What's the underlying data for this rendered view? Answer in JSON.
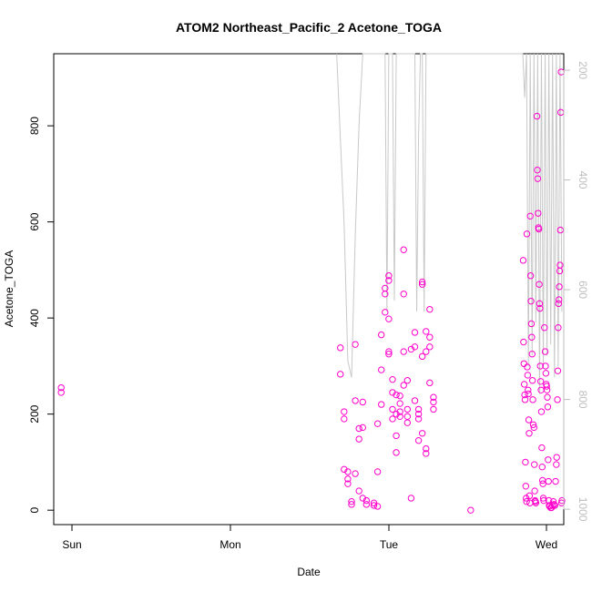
{
  "chart_data": {
    "type": "scatter",
    "title": "ATOM2 Northeast_Pacific_2 Acetone_TOGA",
    "xlabel": "Date",
    "ylabel": "Acetone_TOGA",
    "x_ticks": [
      "Sun",
      "Mon",
      "Tue",
      "Wed"
    ],
    "xlim": [
      -0.02,
      1.35
    ],
    "ylim": [
      -30,
      950
    ],
    "y_ticks": [
      0,
      200,
      400,
      600,
      800
    ],
    "y2_ticks": [
      200,
      400,
      600,
      800,
      1000
    ],
    "y2lim": [
      1028,
      170
    ],
    "grid": false,
    "colors": {
      "points": "#ff00cc",
      "line": "#c8c8c8",
      "axis": "#000000",
      "secondary_axis": "#bdbdbd"
    },
    "series": [
      {
        "values_note": "x in days since Sun tick",
        "points": [
          [
            0.0,
            245
          ],
          [
            0.0,
            255
          ],
          [
            0.75,
            338
          ],
          [
            0.75,
            283
          ],
          [
            0.76,
            205
          ],
          [
            0.76,
            190
          ],
          [
            0.76,
            85
          ],
          [
            0.77,
            80
          ],
          [
            0.77,
            65
          ],
          [
            0.77,
            55
          ],
          [
            0.78,
            12
          ],
          [
            0.78,
            18
          ],
          [
            0.79,
            345
          ],
          [
            0.79,
            228
          ],
          [
            0.79,
            76
          ],
          [
            0.8,
            40
          ],
          [
            0.8,
            148
          ],
          [
            0.8,
            170
          ],
          [
            0.81,
            225
          ],
          [
            0.81,
            172
          ],
          [
            0.81,
            25
          ],
          [
            0.82,
            20
          ],
          [
            0.82,
            12
          ],
          [
            0.84,
            15
          ],
          [
            0.84,
            10
          ],
          [
            0.85,
            8
          ],
          [
            0.85,
            80
          ],
          [
            0.85,
            180
          ],
          [
            0.86,
            220
          ],
          [
            0.86,
            292
          ],
          [
            0.86,
            365
          ],
          [
            0.87,
            412
          ],
          [
            0.87,
            450
          ],
          [
            0.87,
            462
          ],
          [
            0.88,
            488
          ],
          [
            0.88,
            478
          ],
          [
            0.88,
            398
          ],
          [
            0.88,
            330
          ],
          [
            0.88,
            325
          ],
          [
            0.89,
            272
          ],
          [
            0.89,
            245
          ],
          [
            0.89,
            210
          ],
          [
            0.89,
            190
          ],
          [
            0.9,
            155
          ],
          [
            0.9,
            120
          ],
          [
            0.9,
            200
          ],
          [
            0.9,
            240
          ],
          [
            0.91,
            222
          ],
          [
            0.91,
            238
          ],
          [
            0.91,
            205
          ],
          [
            0.91,
            195
          ],
          [
            0.92,
            542
          ],
          [
            0.92,
            450
          ],
          [
            0.92,
            330
          ],
          [
            0.92,
            260
          ],
          [
            0.93,
            270
          ],
          [
            0.93,
            210
          ],
          [
            0.93,
            195
          ],
          [
            0.93,
            182
          ],
          [
            0.94,
            25
          ],
          [
            0.94,
            335
          ],
          [
            0.95,
            370
          ],
          [
            0.95,
            340
          ],
          [
            0.95,
            228
          ],
          [
            0.96,
            210
          ],
          [
            0.96,
            200
          ],
          [
            0.96,
            190
          ],
          [
            0.96,
            145
          ],
          [
            0.97,
            475
          ],
          [
            0.97,
            470
          ],
          [
            0.97,
            320
          ],
          [
            0.97,
            160
          ],
          [
            0.98,
            372
          ],
          [
            0.98,
            330
          ],
          [
            0.98,
            128
          ],
          [
            0.98,
            118
          ],
          [
            0.99,
            418
          ],
          [
            0.99,
            360
          ],
          [
            0.99,
            340
          ],
          [
            0.99,
            265
          ],
          [
            1.0,
            235
          ],
          [
            1.0,
            225
          ],
          [
            1.0,
            210
          ],
          [
            1.1,
            0
          ],
          [
            1.241,
            520
          ],
          [
            1.242,
            350
          ],
          [
            1.243,
            305
          ],
          [
            1.244,
            262
          ],
          [
            1.245,
            240
          ],
          [
            1.246,
            230
          ],
          [
            1.247,
            100
          ],
          [
            1.248,
            50
          ],
          [
            1.249,
            25
          ],
          [
            1.25,
            18
          ],
          [
            1.251,
            575
          ],
          [
            1.252,
            298
          ],
          [
            1.253,
            281
          ],
          [
            1.254,
            250
          ],
          [
            1.255,
            242
          ],
          [
            1.256,
            188
          ],
          [
            1.257,
            160
          ],
          [
            1.258,
            30
          ],
          [
            1.259,
            15
          ],
          [
            1.26,
            612
          ],
          [
            1.261,
            488
          ],
          [
            1.262,
            435
          ],
          [
            1.263,
            388
          ],
          [
            1.264,
            360
          ],
          [
            1.265,
            325
          ],
          [
            1.266,
            270
          ],
          [
            1.267,
            230
          ],
          [
            1.268,
            178
          ],
          [
            1.27,
            172
          ],
          [
            1.271,
            95
          ],
          [
            1.272,
            40
          ],
          [
            1.273,
            20
          ],
          [
            1.274,
            18
          ],
          [
            1.275,
            15
          ],
          [
            1.278,
            820
          ],
          [
            1.279,
            708
          ],
          [
            1.28,
            690
          ],
          [
            1.281,
            618
          ],
          [
            1.282,
            588
          ],
          [
            1.283,
            585
          ],
          [
            1.284,
            470
          ],
          [
            1.285,
            430
          ],
          [
            1.286,
            420
          ],
          [
            1.287,
            300
          ],
          [
            1.288,
            268
          ],
          [
            1.289,
            250
          ],
          [
            1.29,
            205
          ],
          [
            1.291,
            130
          ],
          [
            1.292,
            90
          ],
          [
            1.293,
            62
          ],
          [
            1.294,
            55
          ],
          [
            1.295,
            25
          ],
          [
            1.296,
            20
          ],
          [
            1.298,
            380
          ],
          [
            1.3,
            330
          ],
          [
            1.301,
            300
          ],
          [
            1.302,
            285
          ],
          [
            1.303,
            262
          ],
          [
            1.304,
            258
          ],
          [
            1.305,
            250
          ],
          [
            1.306,
            235
          ],
          [
            1.307,
            215
          ],
          [
            1.308,
            105
          ],
          [
            1.309,
            60
          ],
          [
            1.31,
            20
          ],
          [
            1.311,
            10
          ],
          [
            1.312,
            8
          ],
          [
            1.315,
            5
          ],
          [
            1.317,
            5
          ],
          [
            1.32,
            10
          ],
          [
            1.322,
            18
          ],
          [
            1.324,
            12
          ],
          [
            1.326,
            10
          ],
          [
            1.328,
            60
          ],
          [
            1.33,
            95
          ],
          [
            1.331,
            110
          ],
          [
            1.333,
            230
          ],
          [
            1.334,
            290
          ],
          [
            1.335,
            380
          ],
          [
            1.336,
            430
          ],
          [
            1.337,
            438
          ],
          [
            1.338,
            465
          ],
          [
            1.339,
            498
          ],
          [
            1.34,
            510
          ],
          [
            1.341,
            583
          ],
          [
            1.342,
            828
          ],
          [
            1.343,
            912
          ],
          [
            1.344,
            15
          ],
          [
            1.345,
            20
          ]
        ]
      }
    ],
    "line_series": {
      "x": [
        0.74,
        0.76,
        0.77,
        0.78,
        0.79,
        0.8,
        0.81,
        0.82,
        0.83,
        0.84,
        0.85,
        0.86,
        0.87,
        0.875,
        0.88,
        0.885,
        0.89,
        0.895,
        0.9,
        0.905,
        0.91,
        0.92,
        0.93,
        0.94,
        0.95,
        0.955,
        0.96,
        0.965,
        0.97,
        0.975,
        0.98,
        0.985,
        0.99,
        1.0,
        1.22,
        1.24,
        1.245,
        1.25,
        1.255,
        1.26,
        1.265,
        1.27,
        1.275,
        1.28,
        1.285,
        1.29,
        1.295,
        1.3,
        1.305,
        1.31,
        1.315,
        1.32,
        1.325,
        1.33,
        1.335,
        1.34,
        1.345
      ],
      "y2": [
        170,
        480,
        730,
        760,
        500,
        300,
        170,
        170,
        170,
        170,
        170,
        170,
        170,
        640,
        170,
        170,
        170,
        620,
        170,
        170,
        170,
        170,
        170,
        170,
        170,
        640,
        320,
        170,
        170,
        640,
        170,
        170,
        170,
        170,
        170,
        170,
        250,
        170,
        740,
        170,
        720,
        170,
        660,
        170,
        790,
        170,
        740,
        170,
        720,
        170,
        700,
        170,
        760,
        170,
        740,
        170,
        640
      ]
    }
  }
}
